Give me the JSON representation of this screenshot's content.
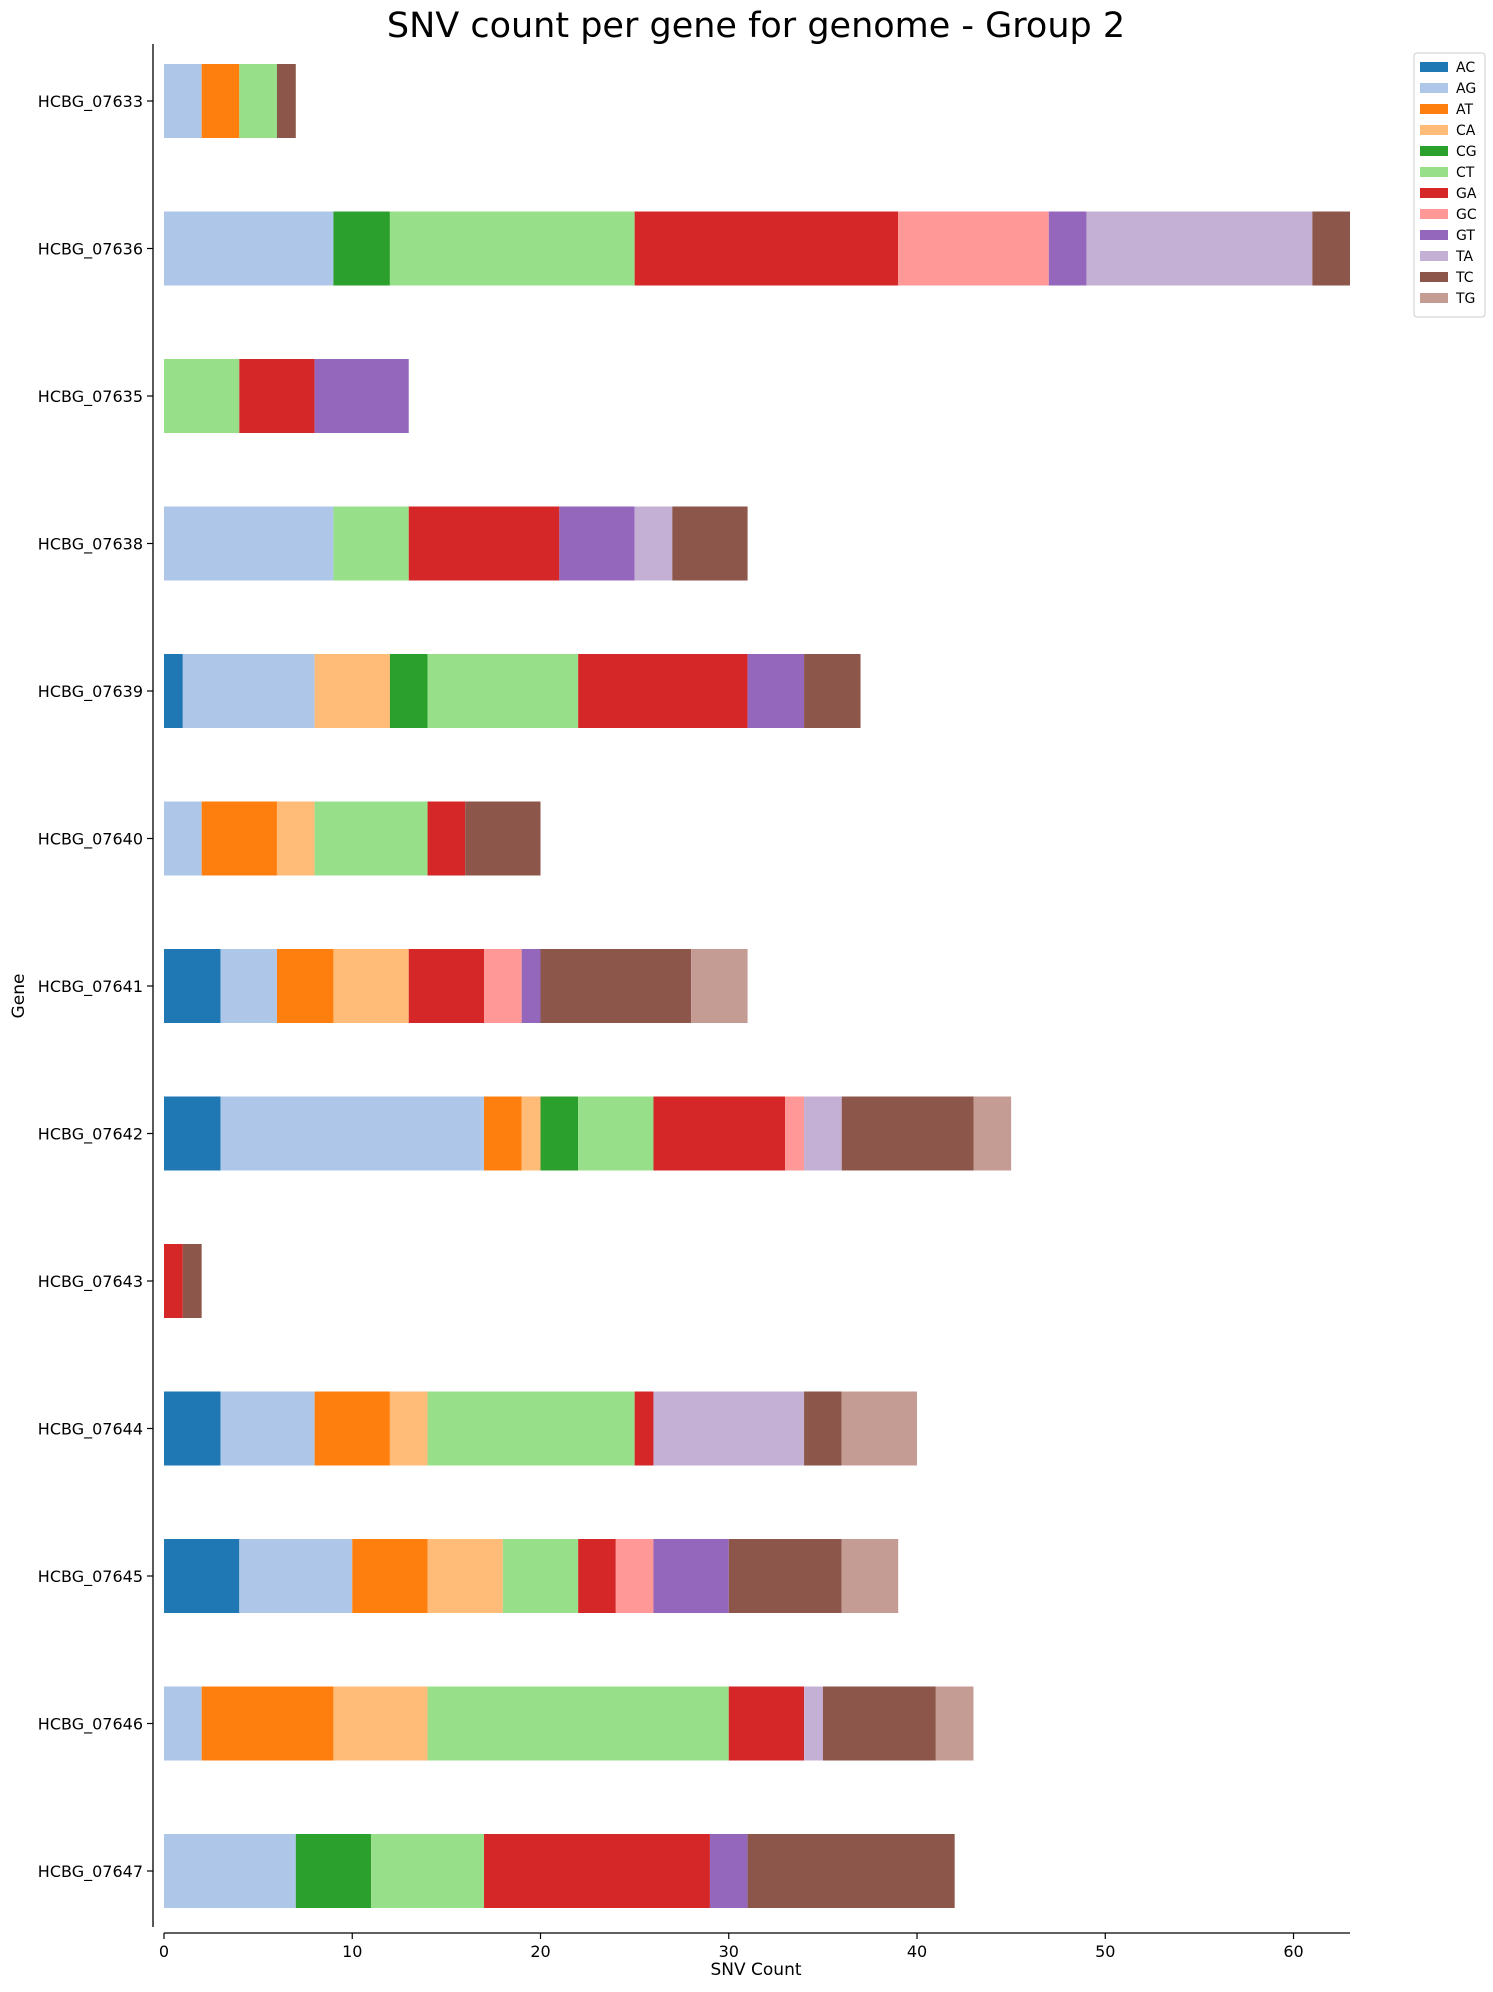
{
  "chart_data": {
    "type": "bar",
    "orientation": "horizontal",
    "stacked": true,
    "title": "SNV count per gene for genome - Group 2",
    "xlabel": "SNV Count",
    "ylabel": "Gene",
    "xlim": [
      0,
      63
    ],
    "xticks": [
      0,
      10,
      20,
      30,
      40,
      50,
      60
    ],
    "grid": false,
    "legend_position": "top-right outside",
    "categories": [
      "HCBG_07633",
      "HCBG_07636",
      "HCBG_07635",
      "HCBG_07638",
      "HCBG_07639",
      "HCBG_07640",
      "HCBG_07641",
      "HCBG_07642",
      "HCBG_07643",
      "HCBG_07644",
      "HCBG_07645",
      "HCBG_07646",
      "HCBG_07647"
    ],
    "series": [
      {
        "name": "AC",
        "color": "#1f77b4",
        "values": [
          0,
          0,
          0,
          0,
          1,
          0,
          3,
          3,
          0,
          3,
          4,
          0,
          0
        ]
      },
      {
        "name": "AG",
        "color": "#aec7e8",
        "values": [
          2,
          9,
          0,
          9,
          7,
          2,
          3,
          14,
          0,
          5,
          6,
          2,
          7
        ]
      },
      {
        "name": "AT",
        "color": "#ff7f0e",
        "values": [
          2,
          0,
          0,
          0,
          0,
          4,
          3,
          2,
          0,
          4,
          4,
          7,
          0
        ]
      },
      {
        "name": "CA",
        "color": "#ffbb78",
        "values": [
          0,
          0,
          0,
          0,
          4,
          2,
          4,
          1,
          0,
          2,
          4,
          5,
          0
        ]
      },
      {
        "name": "CG",
        "color": "#2ca02c",
        "values": [
          0,
          3,
          0,
          0,
          2,
          0,
          0,
          2,
          0,
          0,
          0,
          0,
          4
        ]
      },
      {
        "name": "CT",
        "color": "#98df8a",
        "values": [
          2,
          13,
          4,
          4,
          8,
          6,
          0,
          4,
          0,
          11,
          4,
          16,
          6
        ]
      },
      {
        "name": "GA",
        "color": "#d62728",
        "values": [
          0,
          14,
          4,
          8,
          9,
          2,
          4,
          7,
          1,
          1,
          2,
          4,
          12
        ]
      },
      {
        "name": "GC",
        "color": "#ff9896",
        "values": [
          0,
          8,
          0,
          0,
          0,
          0,
          2,
          1,
          0,
          0,
          2,
          0,
          0
        ]
      },
      {
        "name": "GT",
        "color": "#9467bd",
        "values": [
          0,
          2,
          5,
          4,
          3,
          0,
          1,
          0,
          0,
          0,
          4,
          0,
          2
        ]
      },
      {
        "name": "TA",
        "color": "#c5b0d5",
        "values": [
          0,
          12,
          0,
          2,
          0,
          0,
          0,
          2,
          0,
          8,
          0,
          1,
          0
        ]
      },
      {
        "name": "TC",
        "color": "#8c564b",
        "values": [
          1,
          2,
          0,
          4,
          3,
          4,
          8,
          7,
          1,
          2,
          6,
          6,
          11
        ]
      },
      {
        "name": "TG",
        "color": "#c49c94",
        "values": [
          0,
          0,
          0,
          0,
          0,
          0,
          3,
          2,
          0,
          4,
          3,
          2,
          0
        ]
      }
    ]
  }
}
